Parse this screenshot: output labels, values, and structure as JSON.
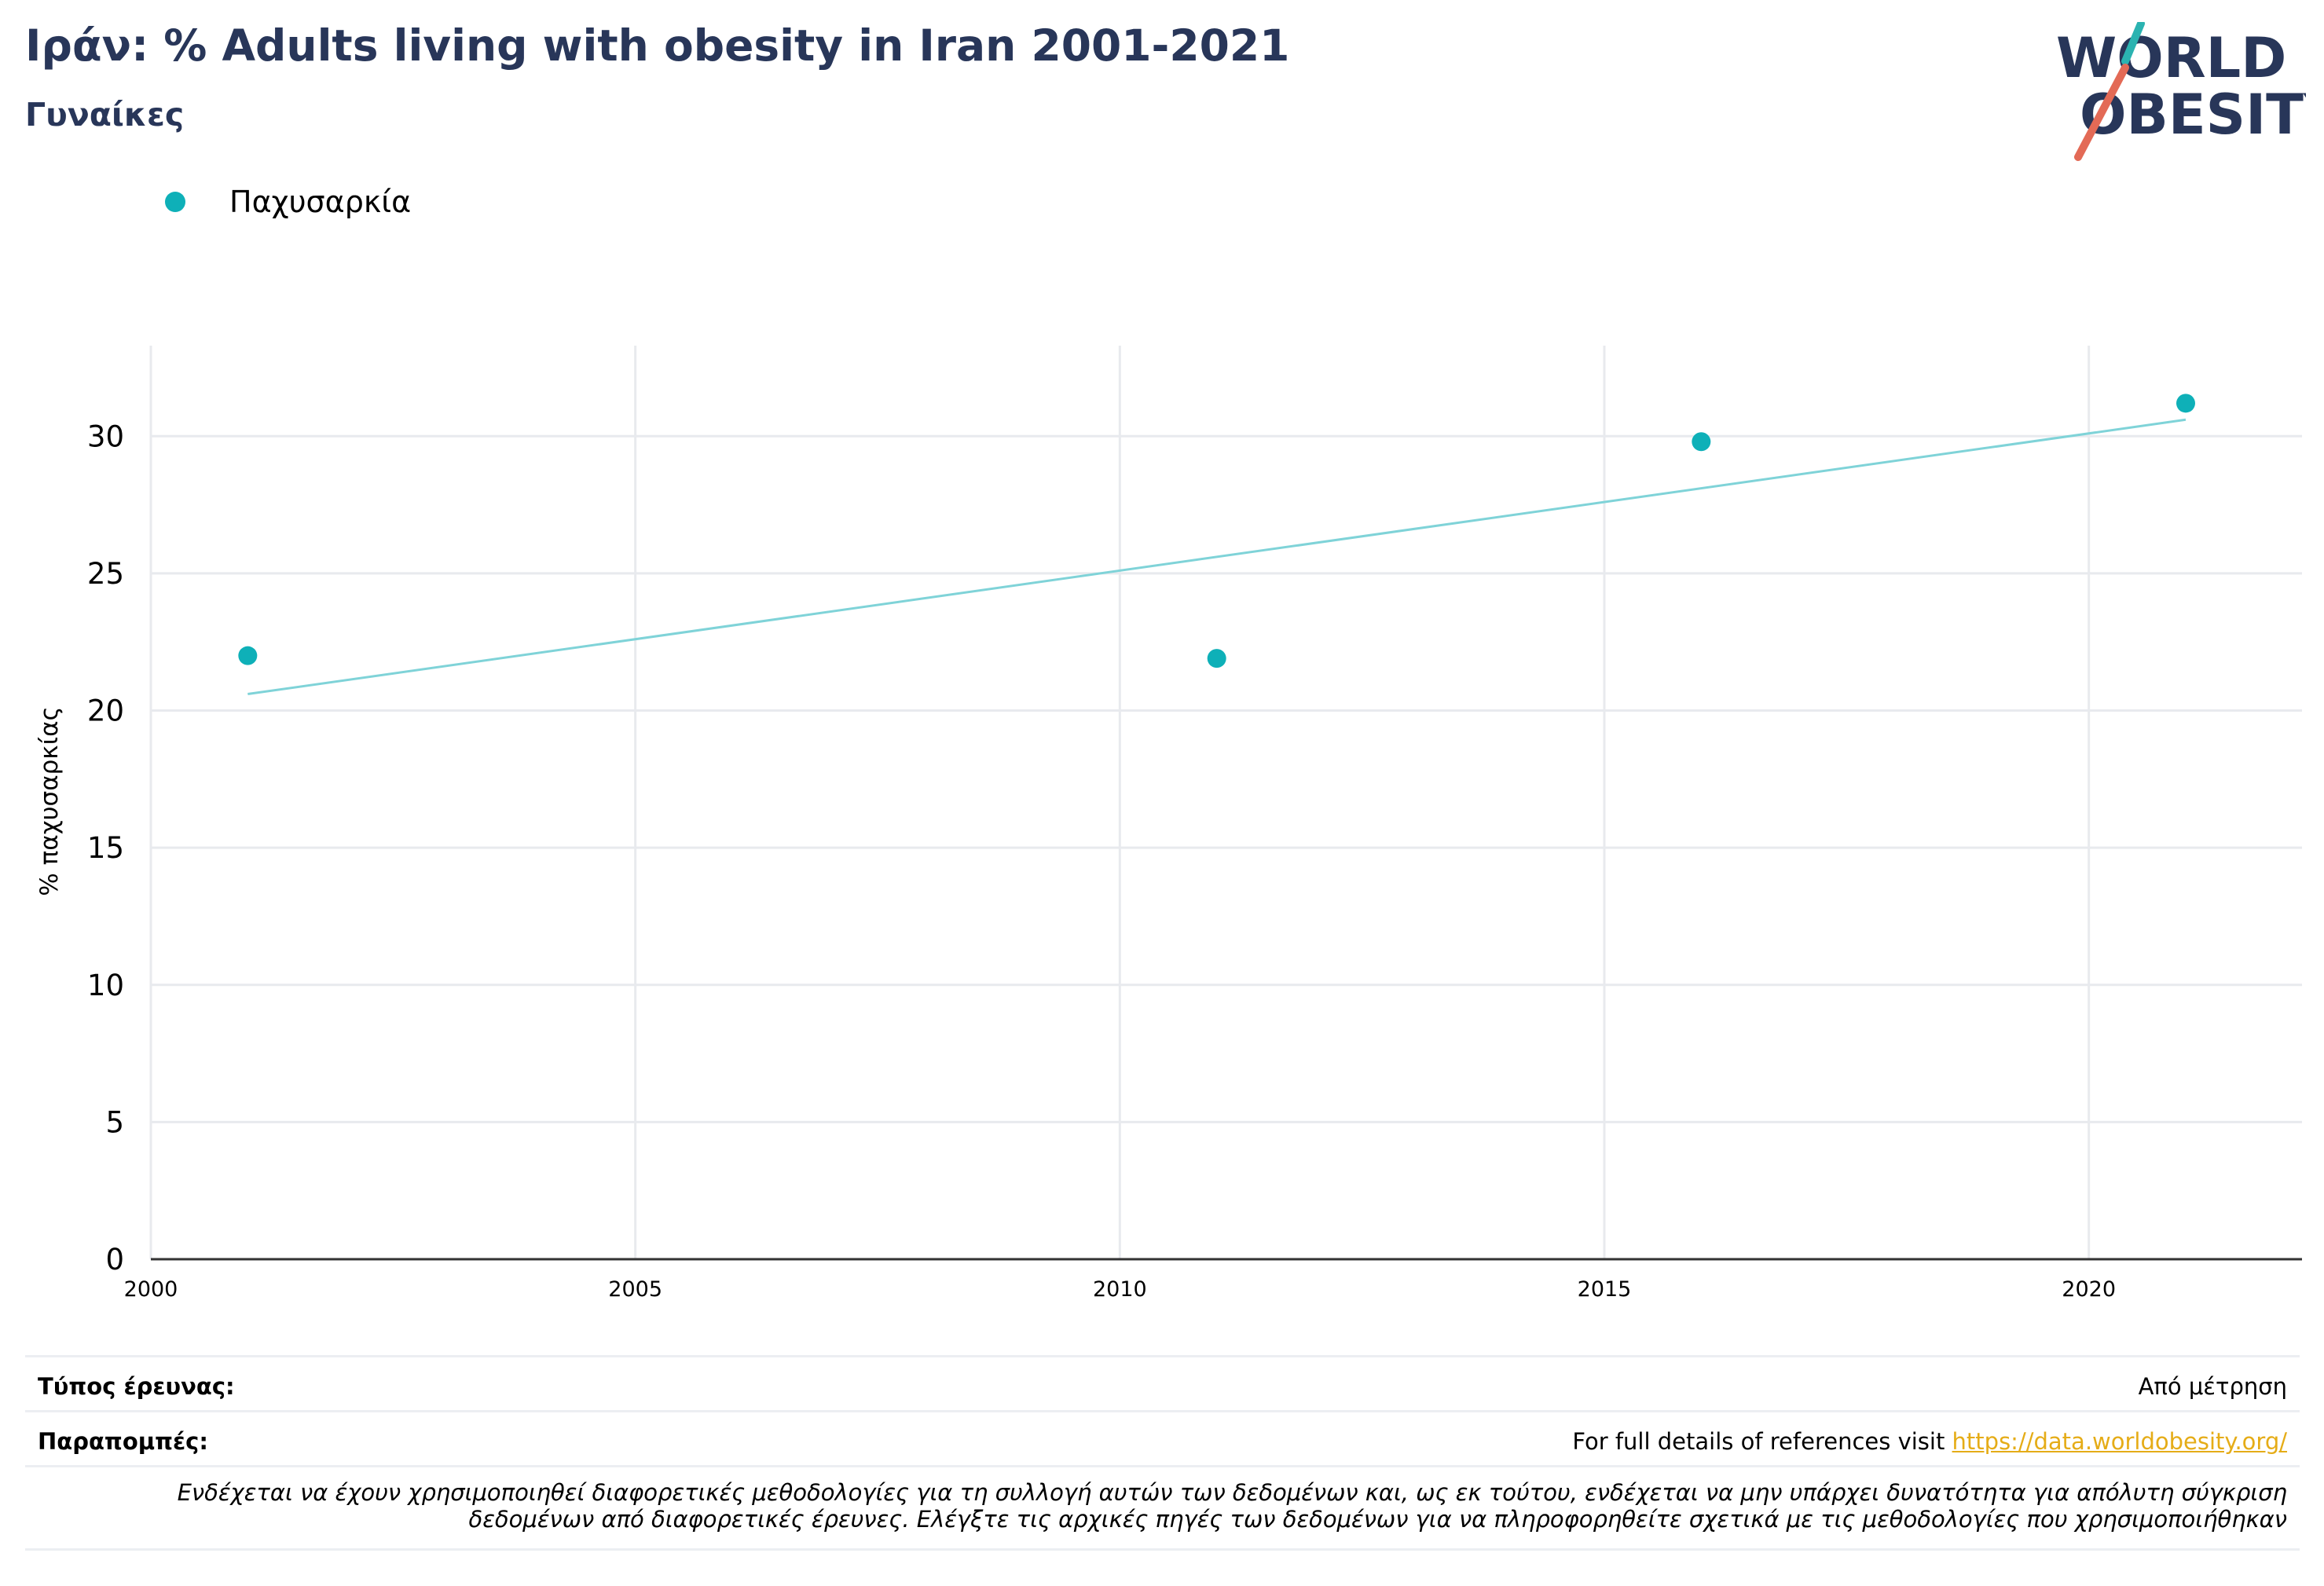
{
  "header": {
    "title": "Ιράν: % Adults living with obesity in Iran 2001-2021",
    "subtitle": "Γυναίκες"
  },
  "logo": {
    "line1": "WORLD",
    "line2": "OBESITY"
  },
  "legend": {
    "label": "Παχυσαρκία",
    "color": "#0eb0b8"
  },
  "chart_data": {
    "type": "scatter",
    "title": "Ιράν: % Adults living with obesity in Iran 2001-2021",
    "subtitle": "Γυναίκες",
    "xlabel": "",
    "ylabel": "% παχυσαρκίας",
    "xlim": [
      2000,
      2022.2
    ],
    "ylim": [
      0,
      33.3
    ],
    "x_ticks": [
      2000,
      2005,
      2010,
      2015,
      2020
    ],
    "y_ticks": [
      0,
      5,
      10,
      15,
      20,
      25,
      30
    ],
    "grid": true,
    "legend_position": "top-left",
    "series": [
      {
        "name": "Παχυσαρκία",
        "color": "#0eb0b8",
        "points": [
          {
            "x": 2001,
            "y": 22.0
          },
          {
            "x": 2011,
            "y": 21.9
          },
          {
            "x": 2016,
            "y": 29.8
          },
          {
            "x": 2021,
            "y": 31.2
          }
        ]
      }
    ],
    "trendline": {
      "color": "#7fd3d8",
      "x": [
        2001,
        2021
      ],
      "y": [
        20.6,
        30.6
      ]
    }
  },
  "info": {
    "survey_type_label": "Τύπος έρευνας:",
    "survey_type_value": "Από μέτρηση",
    "references_label": "Παραπομπές:",
    "references_text": "For full details of references visit ",
    "references_link": "https://data.worldobesity.org/",
    "note_line1": "Ενδέχεται να έχουν χρησιμοποιηθεί διαφορετικές μεθοδολογίες για τη συλλογή αυτών των δεδομένων και, ως εκ τούτου, ενδέχεται να μην υπάρχει δυνατότητα για απόλυτη σύγκριση",
    "note_line2": "δεδομένων από διαφορετικές έρευνες. Ελέγξτε τις αρχικές πηγές των δεδομένων για να πληροφορηθείτε σχετικά με τις μεθοδολογίες που χρησιμοποιήθηκαν"
  }
}
